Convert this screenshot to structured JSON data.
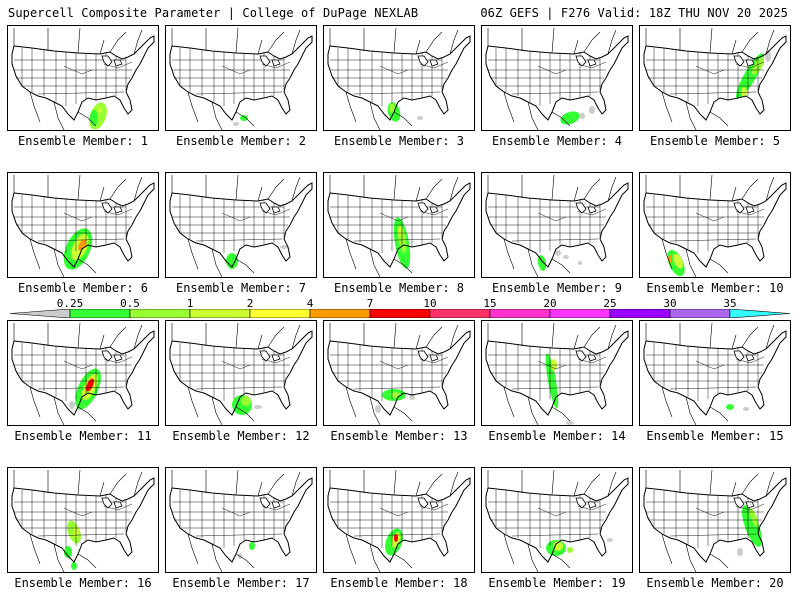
{
  "header": {
    "left_title": "Supercell Composite Parameter | College of DuPage NEXLAB",
    "right_title": "06Z GEFS | F276 Valid: 18Z THU NOV 20 2025"
  },
  "colorbar": {
    "labels": [
      "0.25",
      "0.5",
      "1",
      "2",
      "4",
      "7",
      "10",
      "15",
      "20",
      "25",
      "30",
      "35"
    ],
    "colors": [
      "#cccccc",
      "#33ff33",
      "#99ff33",
      "#ccff33",
      "#ffff33",
      "#ff9900",
      "#ff0000",
      "#ff3366",
      "#ff33cc",
      "#ff33ff",
      "#9900ff",
      "#aa66ee",
      "#33ffff"
    ]
  },
  "members": [
    {
      "label": "Ensemble Member: 1"
    },
    {
      "label": "Ensemble Member: 2"
    },
    {
      "label": "Ensemble Member: 3"
    },
    {
      "label": "Ensemble Member: 4"
    },
    {
      "label": "Ensemble Member: 5"
    },
    {
      "label": "Ensemble Member: 6"
    },
    {
      "label": "Ensemble Member: 7"
    },
    {
      "label": "Ensemble Member: 8"
    },
    {
      "label": "Ensemble Member: 9"
    },
    {
      "label": "Ensemble Member: 10"
    },
    {
      "label": "Ensemble Member: 11"
    },
    {
      "label": "Ensemble Member: 12"
    },
    {
      "label": "Ensemble Member: 13"
    },
    {
      "label": "Ensemble Member: 14"
    },
    {
      "label": "Ensemble Member: 15"
    },
    {
      "label": "Ensemble Member: 16"
    },
    {
      "label": "Ensemble Member: 17"
    },
    {
      "label": "Ensemble Member: 18"
    },
    {
      "label": "Ensemble Member: 19"
    },
    {
      "label": "Ensemble Member: 20"
    }
  ]
}
